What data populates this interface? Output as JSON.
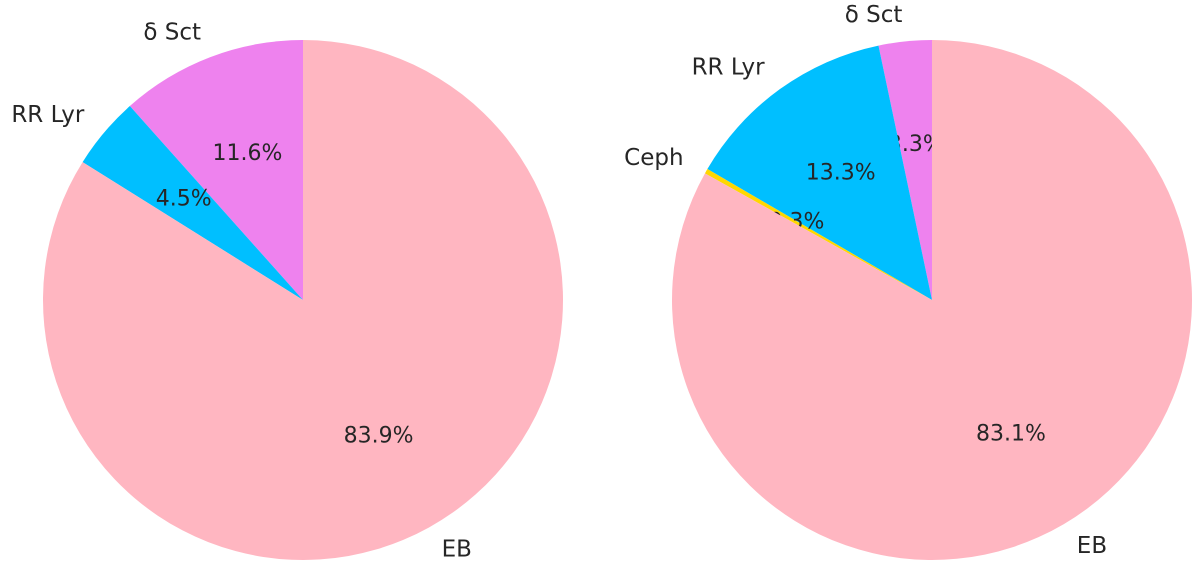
{
  "chart_data": [
    {
      "type": "pie",
      "start_angle_deg": 90,
      "direction": "counterclockwise",
      "slices": [
        {
          "label": "δ Sct",
          "value": 11.6,
          "pct_label": "11.6%",
          "color": "#EE82EE"
        },
        {
          "label": "RR Lyr",
          "value": 4.5,
          "pct_label": "4.5%",
          "color": "#00BFFF"
        },
        {
          "label": "EB",
          "value": 83.9,
          "pct_label": "83.9%",
          "color": "#FFB6C1"
        }
      ]
    },
    {
      "type": "pie",
      "start_angle_deg": 90,
      "direction": "counterclockwise",
      "slices": [
        {
          "label": "δ Sct",
          "value": 3.3,
          "pct_label": "3.3%",
          "color": "#EE82EE"
        },
        {
          "label": "RR Lyr",
          "value": 13.3,
          "pct_label": "13.3%",
          "color": "#00BFFF"
        },
        {
          "label": "Ceph",
          "value": 0.3,
          "pct_label": "0.3%",
          "color": "#FFD700"
        },
        {
          "label": "EB",
          "value": 83.1,
          "pct_label": "83.1%",
          "color": "#FFB6C1"
        }
      ]
    }
  ]
}
